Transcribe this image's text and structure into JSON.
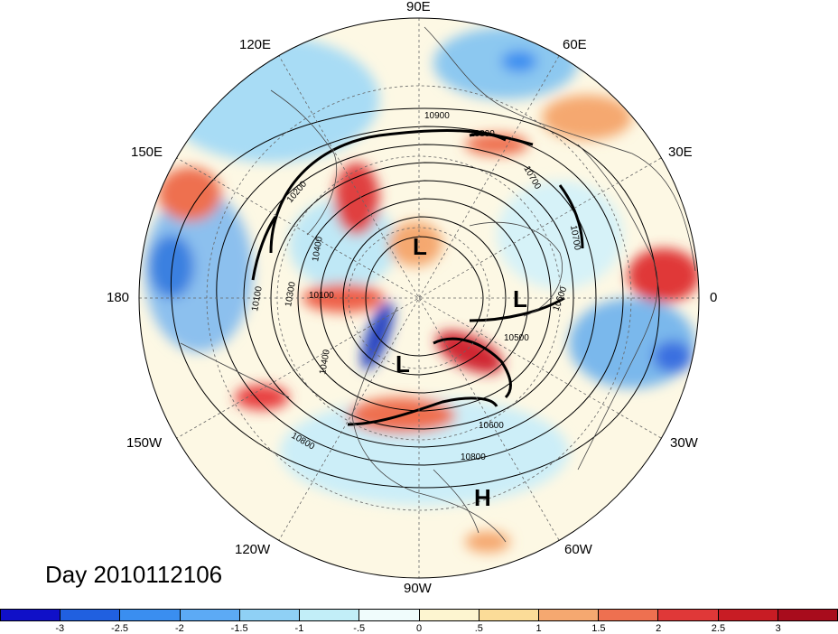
{
  "longitude_labels": [
    "90E",
    "60E",
    "30E",
    "0",
    "30W",
    "60W",
    "90W",
    "120W",
    "150W",
    "180",
    "150E",
    "120E"
  ],
  "date_label": "Day 2010112106",
  "pressure_centers": [
    "L",
    "L",
    "L",
    "H"
  ],
  "contour_labels": [
    "10900",
    "10800",
    "10700",
    "10700",
    "10600",
    "10500",
    "10600",
    "10800",
    "10800",
    "10400",
    "10300",
    "10100",
    "10400",
    "10200",
    "10100"
  ],
  "colorbar": {
    "colors": [
      "#1010c8",
      "#2060e0",
      "#3a8ef0",
      "#5caaf5",
      "#8fd0f5",
      "#c2eef8",
      "#f0fcfc",
      "#fdf5d0",
      "#fbdc98",
      "#f5a870",
      "#ee7050",
      "#e03838",
      "#c81c24",
      "#a80c1c"
    ],
    "labels": [
      "-3",
      "-2.5",
      "-2",
      "-1.5",
      "-1",
      "-.5",
      "0",
      ".5",
      "1",
      "1.5",
      "2",
      "2.5",
      "3"
    ]
  }
}
